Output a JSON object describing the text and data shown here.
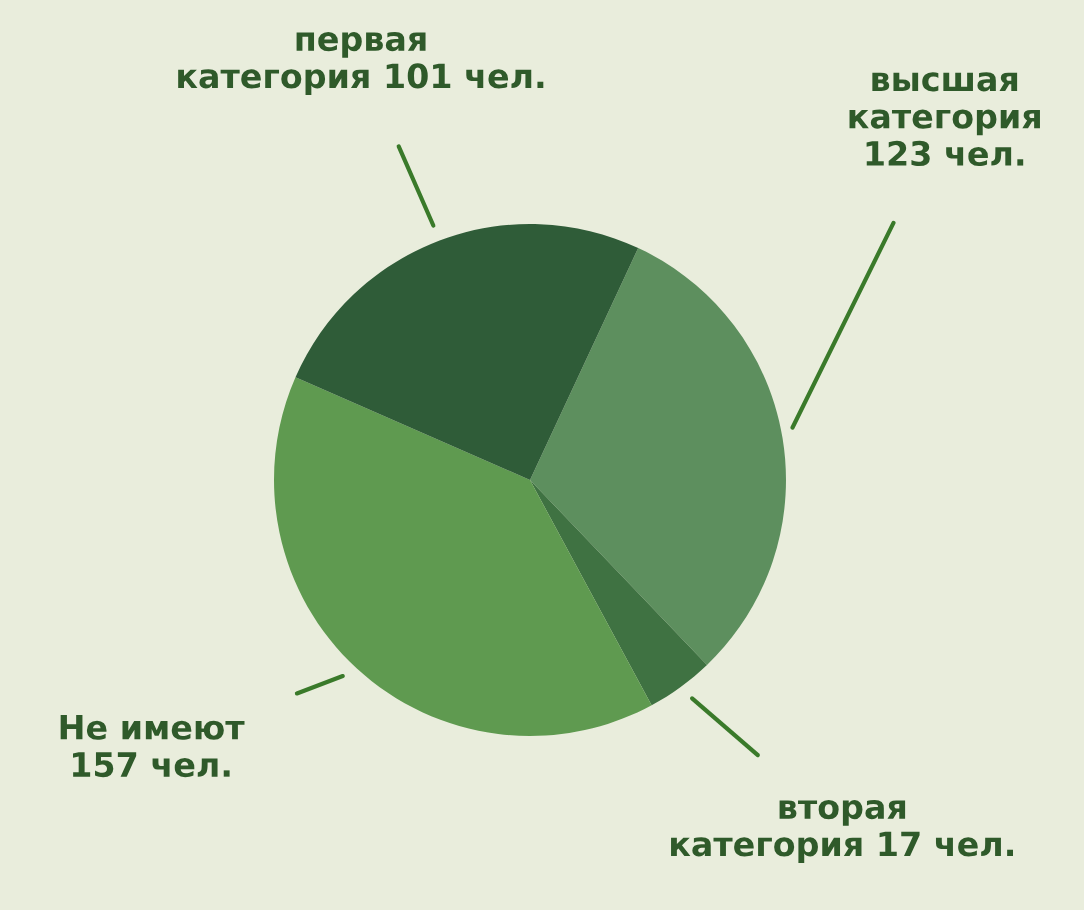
{
  "chart_data": {
    "type": "pie",
    "categories": [
      "высшая\nкатегория\n123 чел.",
      "вторая\nкатегория 17 чел.",
      "Не имеют\n157 чел.",
      "первая\nкатегория 101 чел."
    ],
    "values": [
      123,
      17,
      157,
      101
    ],
    "colors": [
      "#5d8f5e",
      "#3f7242",
      "#5f9a50",
      "#2f5c38"
    ],
    "legend": false
  }
}
